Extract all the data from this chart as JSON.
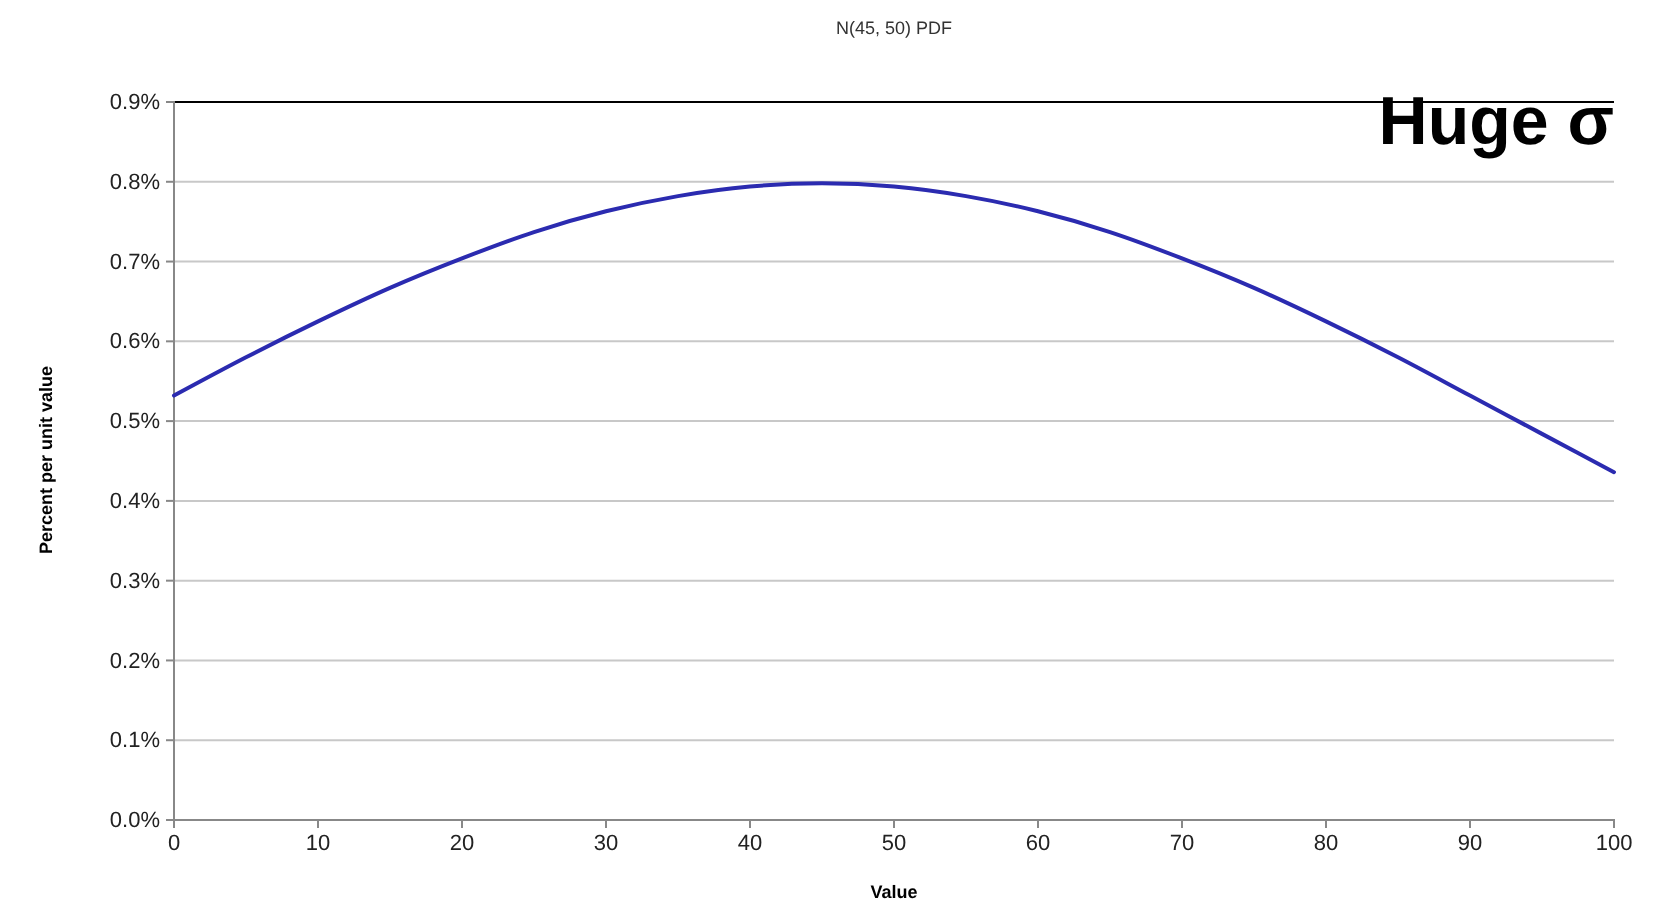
{
  "chart_data": {
    "type": "line",
    "title": "N(45, 50) PDF",
    "xlabel": "Value",
    "ylabel": "Percent per unit value",
    "annotations": [
      "Huge σ"
    ],
    "x": [
      0,
      5,
      10,
      15,
      20,
      25,
      30,
      35,
      40,
      45,
      50,
      55,
      60,
      65,
      70,
      75,
      80,
      85,
      90,
      95,
      100
    ],
    "series": [
      {
        "color": "#2b2bb0",
        "values": [
          0.532,
          0.58,
          0.625,
          0.667,
          0.704,
          0.737,
          0.763,
          0.782,
          0.794,
          0.798,
          0.794,
          0.782,
          0.763,
          0.737,
          0.704,
          0.667,
          0.625,
          0.58,
          0.532,
          0.484,
          0.436
        ]
      }
    ],
    "xlim": [
      0,
      100
    ],
    "xticks": [
      0,
      10,
      20,
      30,
      40,
      50,
      60,
      70,
      80,
      90,
      100
    ],
    "ylim": [
      0,
      0.9
    ],
    "yticks": [
      {
        "value": 0,
        "label": "0.0%"
      },
      {
        "value": 0.1,
        "label": "0.1%"
      },
      {
        "value": 0.2,
        "label": "0.2%"
      },
      {
        "value": 0.3,
        "label": "0.3%"
      },
      {
        "value": 0.4,
        "label": "0.4%"
      },
      {
        "value": 0.5,
        "label": "0.5%"
      },
      {
        "value": 0.6,
        "label": "0.6%"
      },
      {
        "value": 0.7,
        "label": "0.7%"
      },
      {
        "value": 0.8,
        "label": "0.8%"
      },
      {
        "value": 0.9,
        "label": "0.9%"
      }
    ],
    "grid": "y",
    "marker": "none",
    "line_style": "solid"
  }
}
